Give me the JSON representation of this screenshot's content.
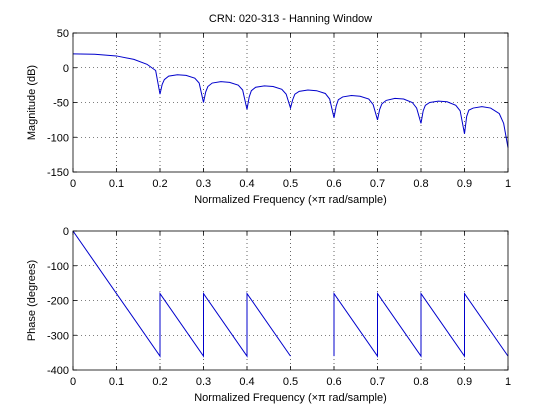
{
  "chart_data": [
    {
      "type": "line",
      "title": "CRN: 020-313 - Hanning Window",
      "xlabel": "Normalized Frequency  (×π rad/sample)",
      "ylabel": "Magnitude (dB)",
      "xlim": [
        0,
        1
      ],
      "ylim": [
        -150,
        50
      ],
      "xticks": [
        "0",
        "0.1",
        "0.2",
        "0.3",
        "0.4",
        "0.5",
        "0.6",
        "0.7",
        "0.8",
        "0.9",
        "1"
      ],
      "yticks": [
        "50",
        "0",
        "-50",
        "-100",
        "-150"
      ],
      "grid": true,
      "series": [
        {
          "name": "magnitude",
          "x": [
            0,
            0.05,
            0.1,
            0.14,
            0.17,
            0.19,
            0.2,
            0.205,
            0.21,
            0.22,
            0.24,
            0.26,
            0.28,
            0.29,
            0.3,
            0.305,
            0.31,
            0.32,
            0.34,
            0.36,
            0.38,
            0.39,
            0.4,
            0.405,
            0.41,
            0.42,
            0.44,
            0.46,
            0.48,
            0.49,
            0.5,
            0.505,
            0.51,
            0.52,
            0.54,
            0.56,
            0.58,
            0.59,
            0.6,
            0.605,
            0.61,
            0.62,
            0.64,
            0.66,
            0.68,
            0.69,
            0.7,
            0.705,
            0.71,
            0.72,
            0.74,
            0.76,
            0.78,
            0.79,
            0.8,
            0.805,
            0.81,
            0.82,
            0.84,
            0.86,
            0.88,
            0.89,
            0.9,
            0.905,
            0.91,
            0.92,
            0.94,
            0.96,
            0.98,
            0.99,
            1.0
          ],
          "values": [
            20,
            19.5,
            17,
            12,
            5,
            -4,
            -38,
            -24,
            -17,
            -12,
            -10,
            -11,
            -15,
            -22,
            -50,
            -35,
            -27,
            -22,
            -20,
            -21,
            -25,
            -32,
            -60,
            -42,
            -33,
            -28,
            -26,
            -27,
            -31,
            -38,
            -58,
            -46,
            -38,
            -34,
            -32,
            -33,
            -37,
            -45,
            -72,
            -55,
            -46,
            -42,
            -40,
            -41,
            -45,
            -53,
            -75,
            -60,
            -52,
            -47,
            -44,
            -45,
            -50,
            -58,
            -80,
            -62,
            -54,
            -50,
            -48,
            -49,
            -54,
            -62,
            -95,
            -70,
            -61,
            -58,
            -56,
            -58,
            -66,
            -80,
            -115
          ]
        }
      ]
    },
    {
      "type": "line",
      "title": "",
      "xlabel": "Normalized Frequency  (×π rad/sample)",
      "ylabel": "Phase (degrees)",
      "xlim": [
        0,
        1
      ],
      "ylim": [
        -400,
        0
      ],
      "xticks": [
        "0",
        "0.1",
        "0.2",
        "0.3",
        "0.4",
        "0.5",
        "0.6",
        "0.7",
        "0.8",
        "0.9",
        "1"
      ],
      "yticks": [
        "0",
        "-100",
        "-200",
        "-300",
        "-400"
      ],
      "grid": true,
      "series": [
        {
          "name": "phase",
          "x": [
            0,
            0.2,
            0.2,
            0.3,
            0.3,
            0.4,
            0.4,
            0.5,
            0.5,
            0.6,
            0.6,
            0.7,
            0.7,
            0.8,
            0.8,
            0.9,
            0.9,
            1.0
          ],
          "values": [
            0,
            -360,
            -180,
            -360,
            -180,
            -360,
            -180,
            -360,
            null,
            -360,
            -180,
            -360,
            -180,
            -360,
            -180,
            -360,
            -180,
            -360
          ]
        }
      ]
    }
  ]
}
